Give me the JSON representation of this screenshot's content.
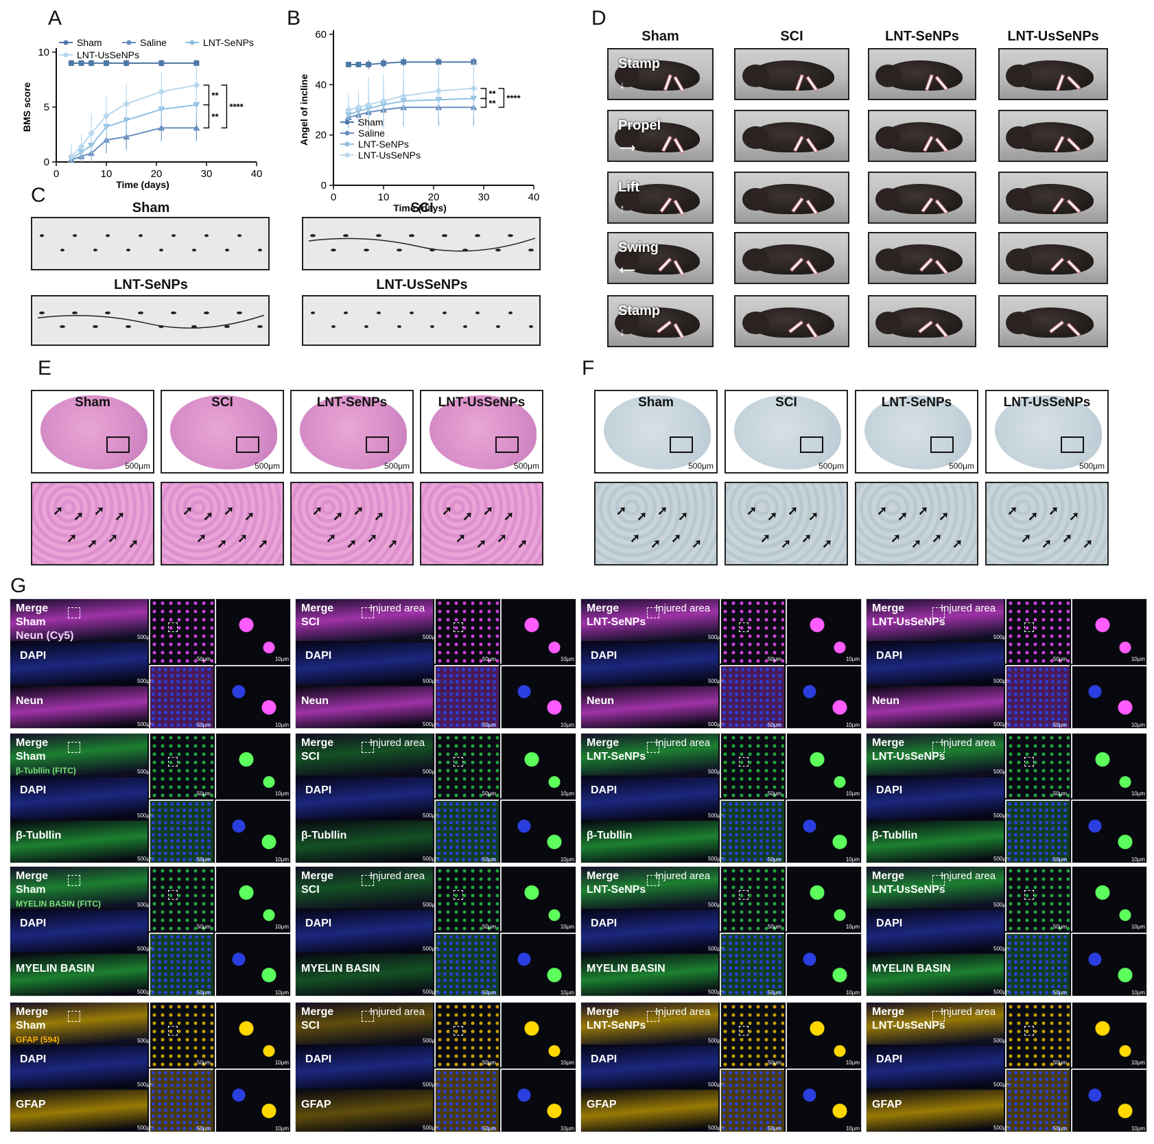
{
  "panels": {
    "A": "A",
    "B": "B",
    "C": "C",
    "D": "D",
    "E": "E",
    "F": "F",
    "G": "G"
  },
  "chart_data": [
    {
      "type": "line",
      "panel": "A",
      "xlabel": "Time (days)",
      "ylabel": "BMS score",
      "xlim": [
        0,
        40
      ],
      "ylim": [
        0,
        10
      ],
      "xticks": [
        0,
        10,
        20,
        30,
        40
      ],
      "yticks": [
        0,
        5,
        10
      ],
      "x": [
        3,
        5,
        7,
        10,
        14,
        21,
        28
      ],
      "series": [
        {
          "name": "Sham",
          "values": [
            9,
            9,
            9,
            9,
            9,
            9,
            9
          ],
          "color": "#4e79a7"
        },
        {
          "name": "Saline",
          "values": [
            0.2,
            0.5,
            0.8,
            2.0,
            2.3,
            3.1,
            3.1
          ],
          "color": "#6a8fbf"
        },
        {
          "name": "LNT-SeNPs",
          "values": [
            0.3,
            0.9,
            1.5,
            3.2,
            3.8,
            4.8,
            5.2
          ],
          "color": "#8fbfe0"
        },
        {
          "name": "LNT-UsSeNPs",
          "values": [
            0.5,
            1.4,
            2.6,
            4.2,
            5.3,
            6.4,
            7.0
          ],
          "color": "#b8d8ee"
        }
      ],
      "significance": [
        "**",
        "**",
        "****"
      ],
      "legend": "top"
    },
    {
      "type": "line",
      "panel": "B",
      "xlabel": "Time (days)",
      "ylabel": "Angel of incline",
      "xlim": [
        0,
        40
      ],
      "ylim": [
        0,
        60
      ],
      "xticks": [
        0,
        10,
        20,
        30,
        40
      ],
      "yticks": [
        0,
        20,
        40,
        60
      ],
      "x": [
        3,
        5,
        7,
        10,
        14,
        21,
        28
      ],
      "series": [
        {
          "name": "Sham",
          "values": [
            48,
            48,
            48,
            48.5,
            49,
            49,
            49
          ],
          "color": "#4e79a7"
        },
        {
          "name": "Saline",
          "values": [
            27,
            28,
            29,
            30,
            31,
            31,
            31
          ],
          "color": "#6a8fbf"
        },
        {
          "name": "LNT-SeNPs",
          "values": [
            28,
            29.5,
            30.5,
            32,
            33.5,
            34,
            34.5
          ],
          "color": "#8fbfe0"
        },
        {
          "name": "LNT-UsSeNPs",
          "values": [
            30,
            31,
            32,
            33.5,
            35.5,
            37.5,
            38.5
          ],
          "color": "#b8d8ee"
        }
      ],
      "significance": [
        "**",
        "**",
        "****"
      ],
      "legend": "bottom-left"
    }
  ],
  "panelC": {
    "cells": [
      {
        "title": "Sham"
      },
      {
        "title": "SCI"
      },
      {
        "title": "LNT-SeNPs"
      },
      {
        "title": "LNT-UsSeNPs"
      }
    ]
  },
  "panelD": {
    "columns": [
      "Sham",
      "SCI",
      "LNT-SeNPs",
      "LNT-UsSeNPs"
    ],
    "rows": [
      {
        "label": "Stamp",
        "arrow": "↓"
      },
      {
        "label": "Propel",
        "arrow": "⟶"
      },
      {
        "label": "Lift",
        "arrow": "↑"
      },
      {
        "label": "Swing",
        "arrow": "⟵"
      },
      {
        "label": "Stamp",
        "arrow": "↓"
      }
    ]
  },
  "panelE": {
    "titles": [
      "Sham",
      "SCI",
      "LNT-SeNPs",
      "LNT-UsSeNPs"
    ],
    "scale": "500μm"
  },
  "panelF": {
    "titles": [
      "Sham",
      "SCI",
      "LNT-SeNPs",
      "LNT-UsSeNPs"
    ],
    "scale": "500μm"
  },
  "panelG": {
    "groups": [
      "Sham",
      "SCI",
      "LNT-SeNPs",
      "LNT-UsSeNPs"
    ],
    "injured": "Injured area",
    "merge": "Merge",
    "dapi": "DAPI",
    "scales": {
      "big": "500μm",
      "mid": "50μm",
      "small": "10μm"
    },
    "rows": [
      {
        "stain": "Neun (Cy5)",
        "marker": "Neun",
        "color": "#d040d8",
        "bright": "#ff5cff"
      },
      {
        "stain": "β-Tubllin (FITC)",
        "marker": "β-Tubllin",
        "color": "#22a83a",
        "bright": "#5cff5c"
      },
      {
        "stain": "MYELIN BASIN (FITC)",
        "marker": "MYELIN BASIN",
        "color": "#22a83a",
        "bright": "#5cff5c"
      },
      {
        "stain": "GFAP (594)",
        "marker": "GFAP",
        "color": "#c8a000",
        "bright": "#ffd800"
      }
    ]
  }
}
